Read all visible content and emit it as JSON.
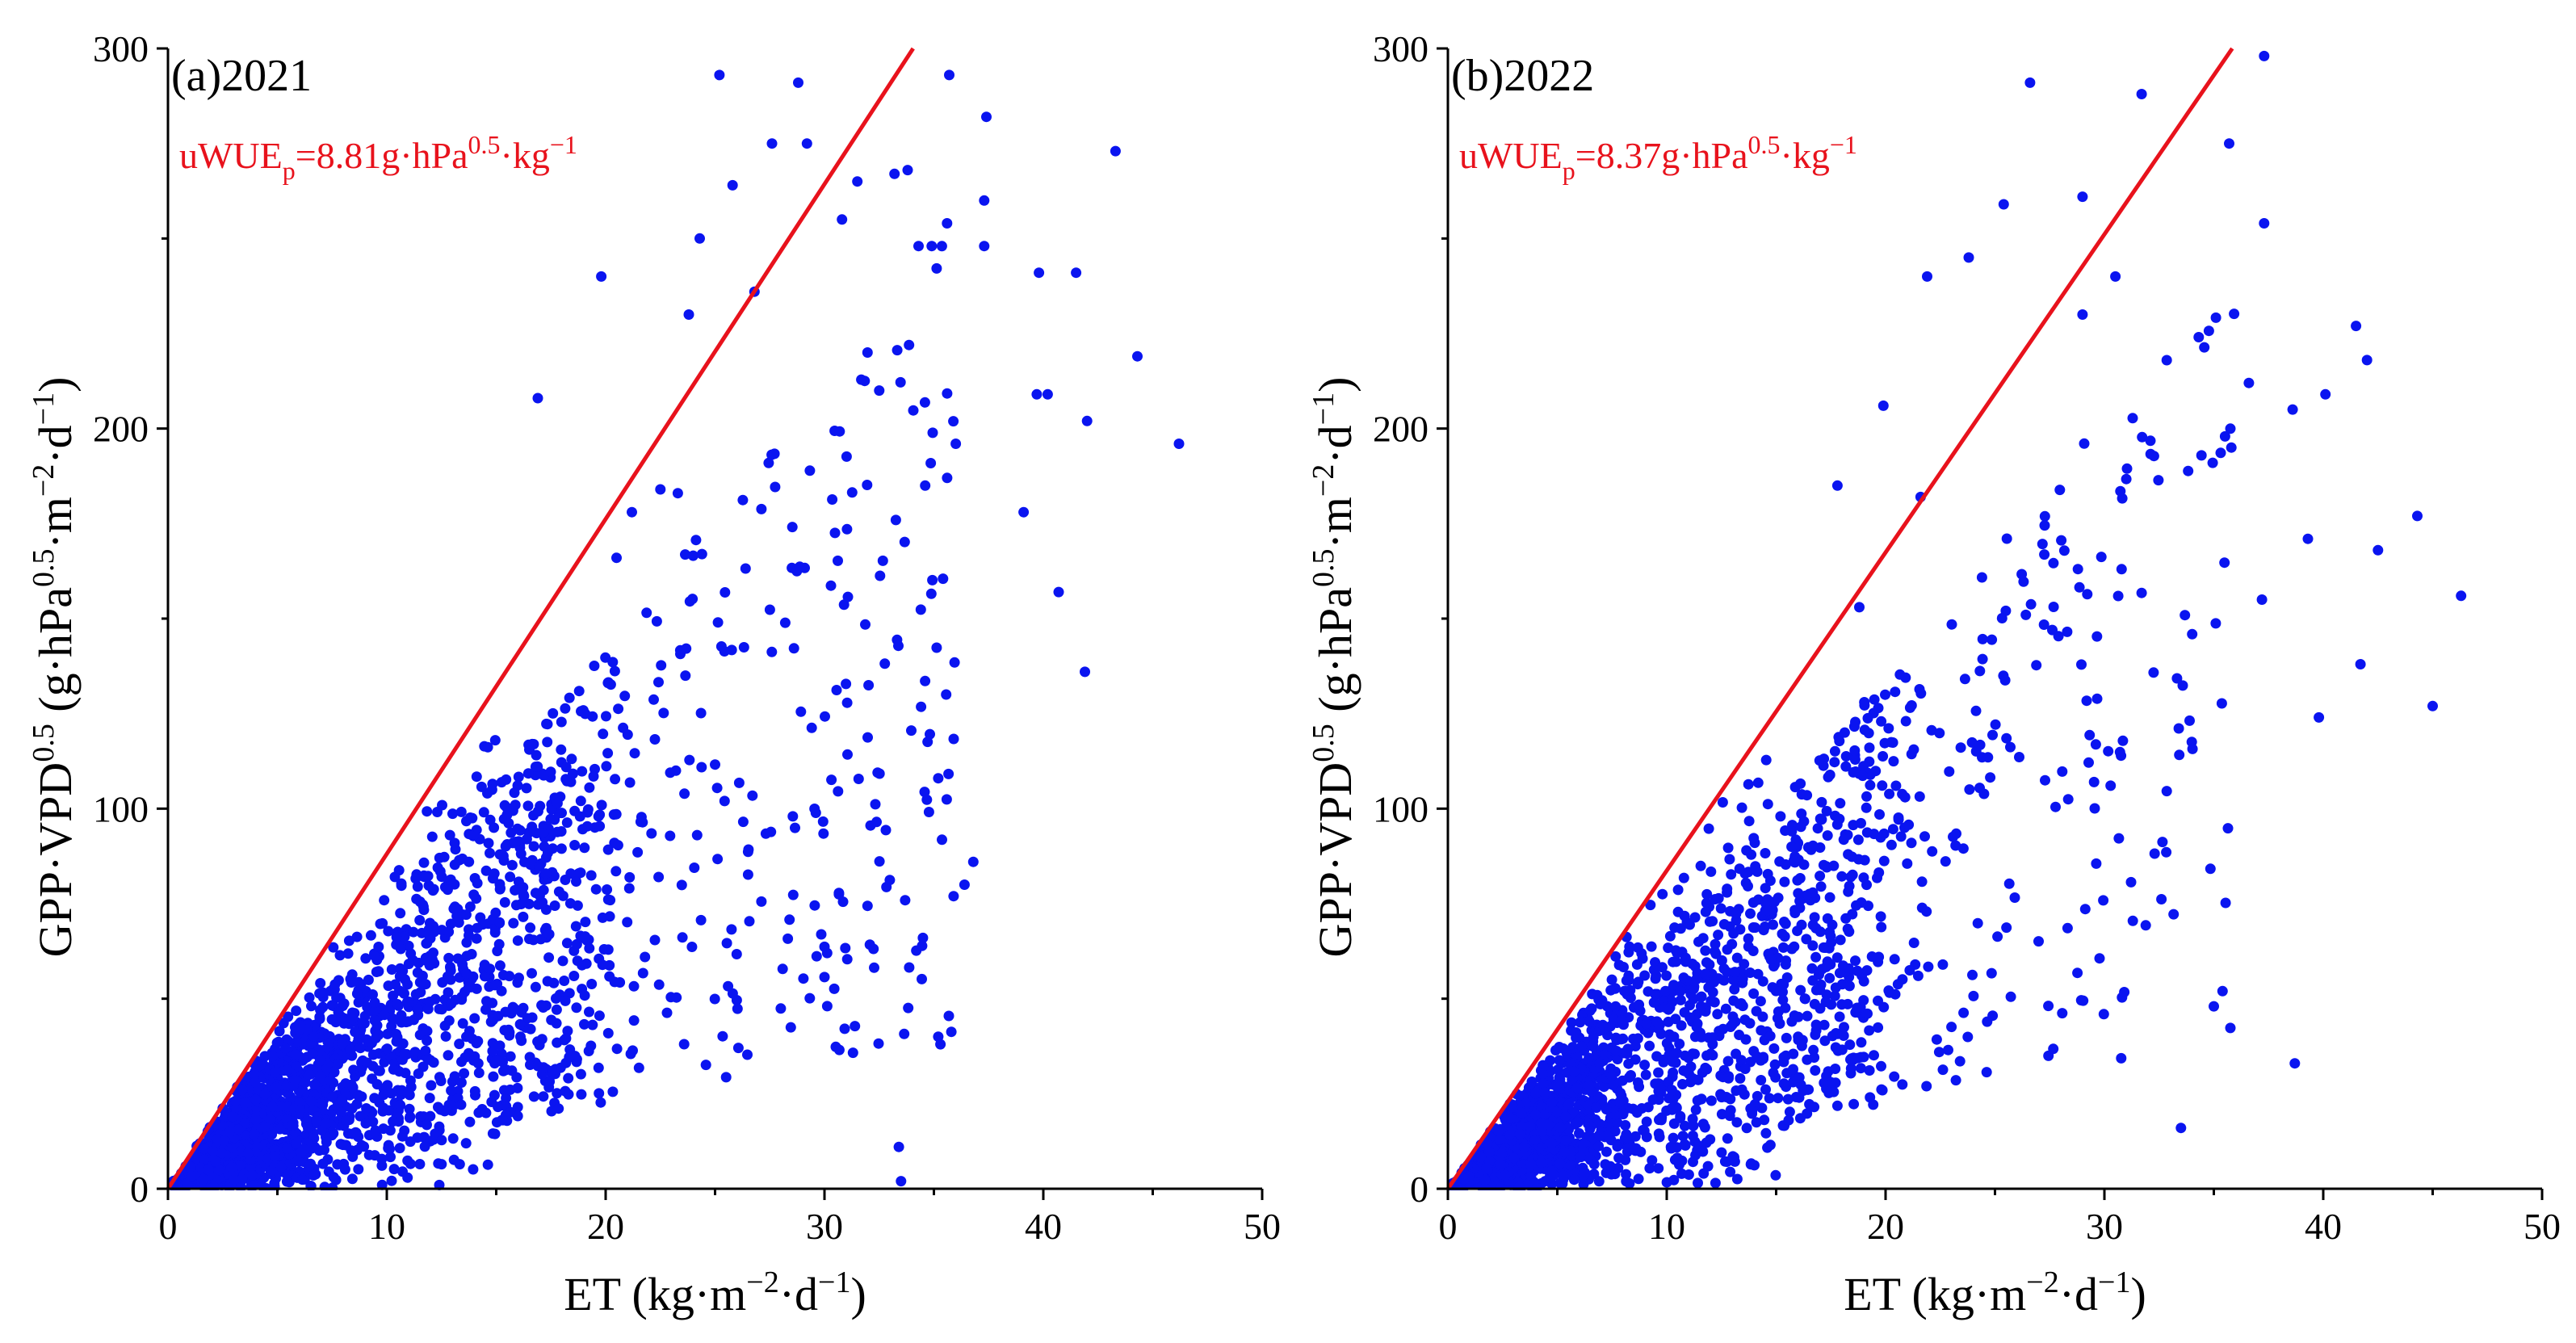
{
  "chart_data": [
    {
      "type": "scatter",
      "panel_label": "(a)2021",
      "annotation": {
        "prefix": "uWUE",
        "sub": "p",
        "value": "=8.81g·hPa",
        "sup1": "0.5",
        "mid": "·kg",
        "sup2": "−1"
      },
      "xlabel": {
        "text": "ET (kg·m",
        "sup1": "−2",
        "mid": "·d",
        "sup2": "−1",
        "end": ")"
      },
      "ylabel": {
        "text": "GPP·VPD",
        "sup1": "0.5",
        "mid": " (g·hPa",
        "sup2": "0.5",
        "mid2": "·m",
        "sup3": "−2",
        "mid3": "·d",
        "sup4": "−1",
        "end": ")"
      },
      "xlim": [
        0,
        50
      ],
      "ylim": [
        0,
        300
      ],
      "xticks": [
        "0",
        "10",
        "20",
        "30",
        "40",
        "50"
      ],
      "yticks": [
        "0",
        "100",
        "200",
        "300"
      ],
      "fit_slope": 8.81,
      "point_color": "#0a14f0",
      "line_color": "#e8121c",
      "series_points": [
        [
          46.2,
          196
        ],
        [
          44.3,
          219
        ],
        [
          43.3,
          273
        ],
        [
          42.0,
          202
        ],
        [
          41.5,
          241
        ],
        [
          41.9,
          136
        ],
        [
          40.7,
          157
        ],
        [
          40.2,
          209
        ],
        [
          39.8,
          241
        ],
        [
          39.7,
          209
        ],
        [
          39.1,
          178
        ],
        [
          37.4,
          282
        ],
        [
          37.3,
          260
        ],
        [
          37.3,
          248
        ],
        [
          36.8,
          86
        ],
        [
          36.4,
          80
        ],
        [
          36.0,
          196
        ],
        [
          35.7,
          293
        ],
        [
          35.6,
          254
        ],
        [
          34.9,
          248
        ],
        [
          33.8,
          268
        ],
        [
          33.2,
          267
        ],
        [
          32.5,
          210
        ],
        [
          31.5,
          265
        ],
        [
          30.8,
          255
        ],
        [
          29.2,
          275
        ],
        [
          28.8,
          291
        ],
        [
          27.6,
          275
        ],
        [
          26.8,
          236
        ],
        [
          25.8,
          264
        ],
        [
          25.2,
          293
        ],
        [
          24.3,
          250
        ],
        [
          23.8,
          230
        ],
        [
          23.3,
          183
        ],
        [
          22.5,
          184
        ],
        [
          21.2,
          178
        ],
        [
          20.5,
          166
        ],
        [
          19.8,
          240
        ],
        [
          16.9,
          208
        ],
        [
          34.3,
          248
        ],
        [
          34.6,
          185
        ],
        [
          35.2,
          108
        ],
        [
          34.5,
          66
        ],
        [
          33.5,
          2
        ],
        [
          33.4,
          11
        ],
        [
          35.2,
          40
        ],
        [
          35.3,
          38
        ]
      ],
      "cloud_seed": 11,
      "cloud_n": 2300
    },
    {
      "type": "scatter",
      "panel_label": "(b)2022",
      "annotation": {
        "prefix": "uWUE",
        "sub": "p",
        "value": "=8.37g·hPa",
        "sup1": "0.5",
        "mid": "·kg",
        "sup2": "−1"
      },
      "xlabel": {
        "text": "ET (kg·m",
        "sup1": "−2",
        "mid": "·d",
        "sup2": "−1",
        "end": ")"
      },
      "ylabel": {
        "text": "GPP·VPD",
        "sup1": "0.5",
        "mid": " (g·hPa",
        "sup2": "0.5",
        "mid2": "·m",
        "sup3": "−2",
        "mid3": "·d",
        "sup4": "−1",
        "end": ")"
      },
      "xlim": [
        0,
        50
      ],
      "ylim": [
        0,
        300
      ],
      "xticks": [
        "0",
        "10",
        "20",
        "30",
        "40",
        "50"
      ],
      "yticks": [
        "0",
        "100",
        "200",
        "300"
      ],
      "fit_slope": 8.37,
      "point_color": "#0a14f0",
      "line_color": "#e8121c",
      "series_points": [
        [
          46.3,
          156
        ],
        [
          45.0,
          127
        ],
        [
          44.3,
          177
        ],
        [
          42.5,
          168
        ],
        [
          42.0,
          218
        ],
        [
          41.5,
          227
        ],
        [
          41.7,
          138
        ],
        [
          40.1,
          209
        ],
        [
          39.3,
          171
        ],
        [
          39.8,
          124
        ],
        [
          38.6,
          205
        ],
        [
          38.7,
          33
        ],
        [
          37.3,
          298
        ],
        [
          37.3,
          254
        ],
        [
          37.2,
          155
        ],
        [
          36.6,
          212
        ],
        [
          35.8,
          195
        ],
        [
          35.7,
          275
        ],
        [
          35.4,
          52
        ],
        [
          35.0,
          48
        ],
        [
          33.5,
          16
        ],
        [
          31.7,
          288
        ],
        [
          30.5,
          240
        ],
        [
          29.0,
          230
        ],
        [
          26.6,
          291
        ],
        [
          25.4,
          259
        ],
        [
          23.8,
          245
        ],
        [
          21.9,
          240
        ],
        [
          19.9,
          206
        ],
        [
          18.8,
          153
        ],
        [
          17.8,
          185
        ],
        [
          21.6,
          182
        ],
        [
          29.0,
          261
        ]
      ],
      "cloud_seed": 29,
      "cloud_n": 2100
    }
  ]
}
